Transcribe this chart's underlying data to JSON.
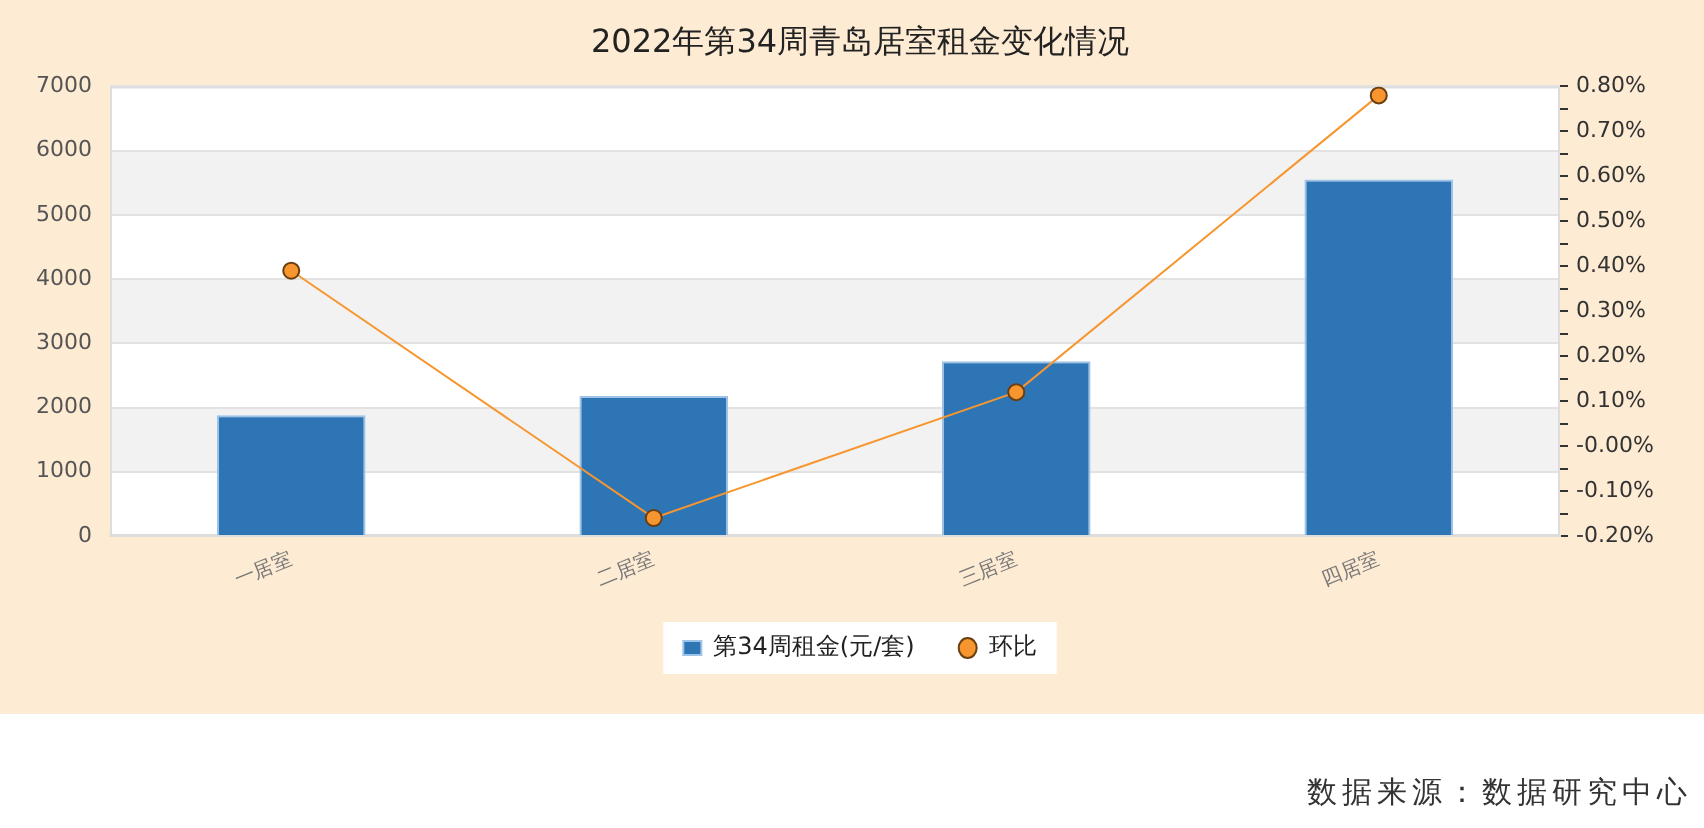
{
  "chart_data": {
    "type": "bar",
    "title": "2022年第34周青岛居室租金变化情况",
    "categories": [
      "一居室",
      "二居室",
      "三居室",
      "四居室"
    ],
    "series": [
      {
        "name": "第34周租金(元/套)",
        "color": "#2e75b6",
        "values": [
          1880,
          2180,
          2720,
          5550
        ]
      },
      {
        "name": "环比",
        "type": "line",
        "axis": "y2",
        "color": "#f7962f",
        "values": [
          0.39,
          -0.16,
          0.12,
          0.78
        ]
      }
    ],
    "ylim": [
      0,
      7000
    ],
    "yticks": [
      0,
      1000,
      2000,
      3000,
      4000,
      5000,
      6000,
      7000
    ],
    "y2lim": [
      -0.2,
      0.8
    ],
    "y2ticks": [
      {
        "value": -0.2,
        "label": "-0.20%"
      },
      {
        "value": -0.15,
        "label": null
      },
      {
        "value": -0.1,
        "label": "-0.10%"
      },
      {
        "value": -0.05,
        "label": null
      },
      {
        "value": 0,
        "label": "-0.00%"
      },
      {
        "value": 0.05,
        "label": null
      },
      {
        "value": 0.1,
        "label": "0.10%"
      },
      {
        "value": 0.15,
        "label": null
      },
      {
        "value": 0.2,
        "label": "0.20%"
      },
      {
        "value": 0.25,
        "label": null
      },
      {
        "value": 0.3,
        "label": "0.30%"
      },
      {
        "value": 0.35,
        "label": null
      },
      {
        "value": 0.4,
        "label": "0.40%"
      },
      {
        "value": 0.45,
        "label": null
      },
      {
        "value": 0.5,
        "label": "0.50%"
      },
      {
        "value": 0.55,
        "label": null
      },
      {
        "value": 0.6,
        "label": "0.60%"
      },
      {
        "value": 0.65,
        "label": null
      },
      {
        "value": 0.7,
        "label": "0.70%"
      },
      {
        "value": 0.75,
        "label": null
      },
      {
        "value": 0.8,
        "label": "0.80%"
      }
    ],
    "grid": "y",
    "legend": "bottom",
    "marker": "circle",
    "annotations": [
      "数据来源：数据研究中心"
    ]
  }
}
